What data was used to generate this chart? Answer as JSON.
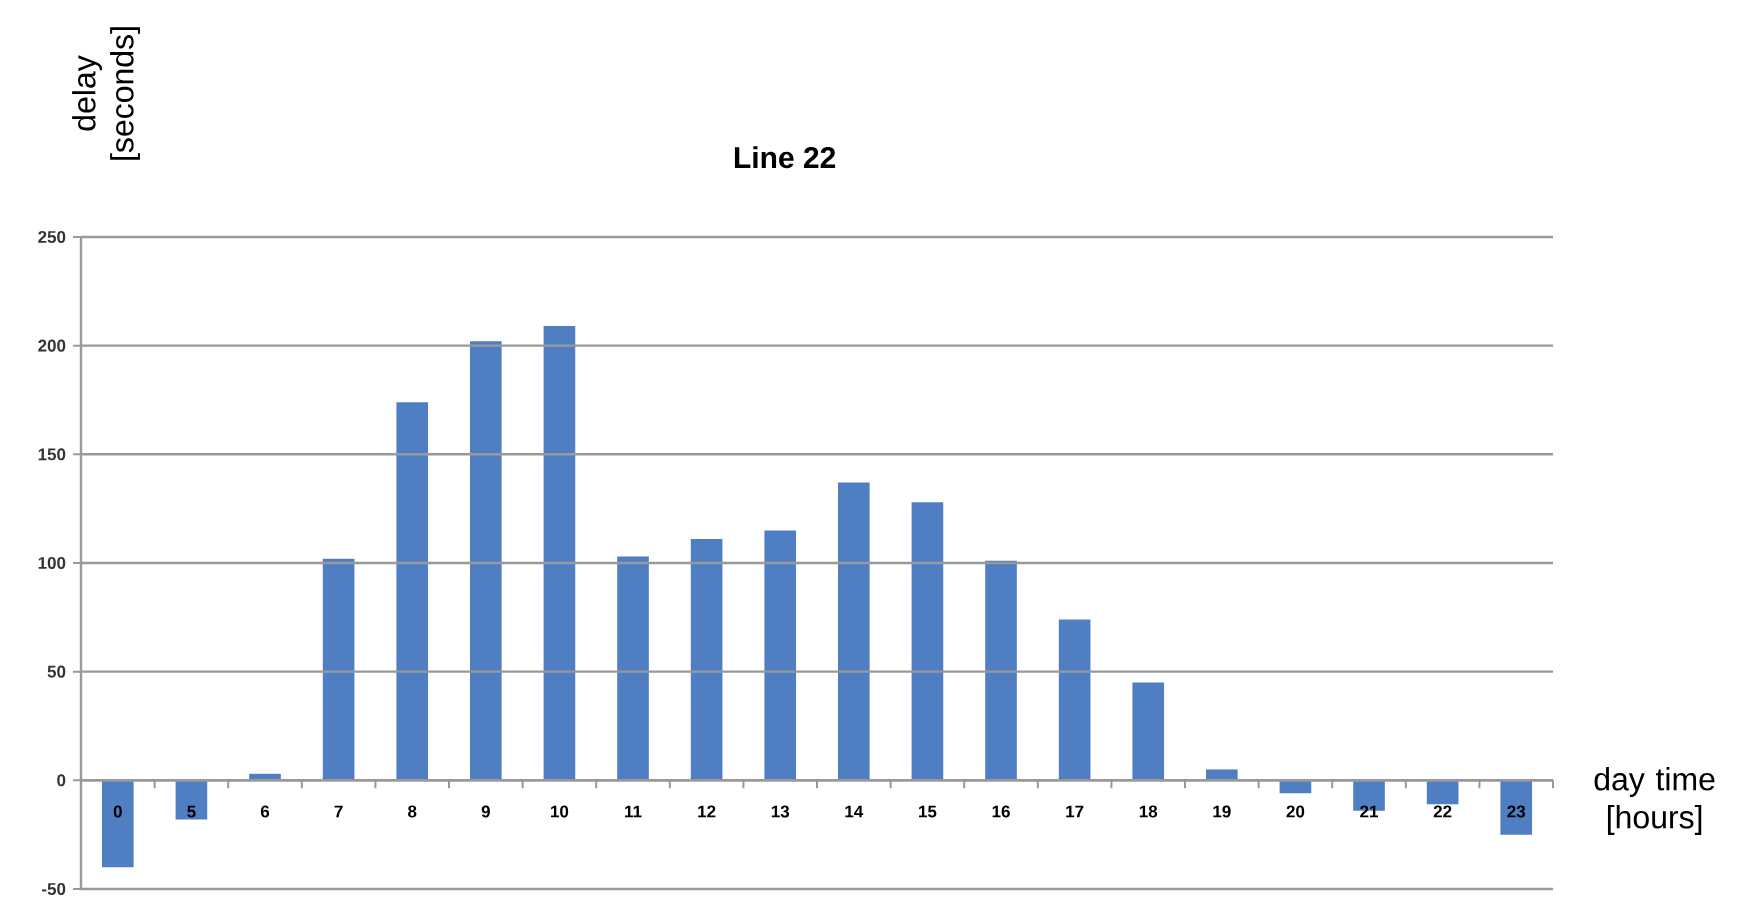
{
  "chart_data": {
    "type": "bar",
    "title": "Line 22",
    "xlabel": "day time [hours]",
    "ylabel": "delay [seconds]",
    "categories": [
      "0",
      "5",
      "6",
      "7",
      "8",
      "9",
      "10",
      "11",
      "12",
      "13",
      "14",
      "15",
      "16",
      "17",
      "18",
      "19",
      "20",
      "21",
      "22",
      "23"
    ],
    "values": [
      -40,
      -18,
      3,
      102,
      174,
      202,
      209,
      103,
      111,
      115,
      137,
      128,
      101,
      74,
      45,
      5,
      -6,
      -14,
      -11,
      -25
    ],
    "color": "#4f7fc2",
    "ylim": [
      -50,
      250
    ],
    "yticks": [
      -50,
      0,
      50,
      100,
      150,
      200,
      250
    ],
    "grid": "y"
  }
}
